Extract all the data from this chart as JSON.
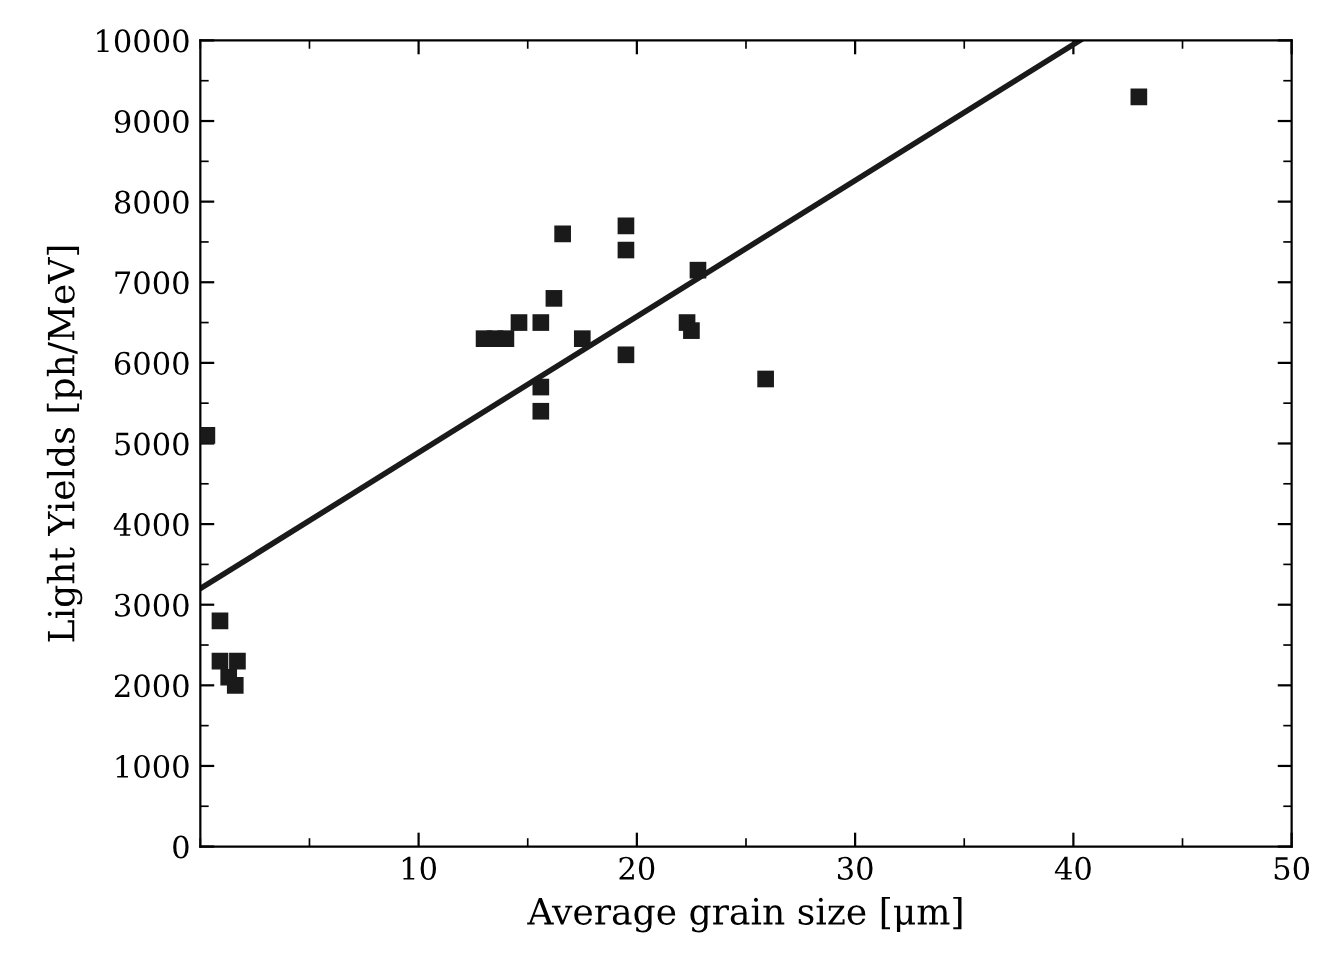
{
  "chart_data": {
    "type": "scatter",
    "xlabel": "Average grain size [μm]",
    "ylabel": "Light Yields [ph/MeV]",
    "xlim": [
      0,
      50
    ],
    "ylim": [
      0,
      10000
    ],
    "xticks": [
      10,
      20,
      30,
      40,
      50
    ],
    "yticks": [
      0,
      1000,
      2000,
      3000,
      4000,
      5000,
      6000,
      7000,
      8000,
      9000,
      10000
    ],
    "grid": false,
    "series": [
      {
        "marker": "square",
        "color": "#1a1a1a",
        "x": [
          0.3,
          0.9,
          0.9,
          1.3,
          1.7,
          1.6,
          13,
          13.5,
          14,
          14.6,
          15.6,
          15.6,
          15.6,
          16.2,
          16.6,
          17.5,
          19.5,
          19.5,
          19.5,
          22.3,
          22.5,
          22.8,
          25.9,
          43
        ],
        "values": [
          5100,
          2800,
          2300,
          2100,
          2300,
          2000,
          6300,
          6300,
          6300,
          6500,
          6500,
          5700,
          5400,
          6800,
          7600,
          6300,
          7700,
          7400,
          6100,
          6500,
          6400,
          7150,
          5800,
          9300
        ]
      },
      {
        "type": "line",
        "marker": "none",
        "line_style": "solid",
        "color": "#1a1a1a",
        "x": [
          0,
          40.3
        ],
        "values": [
          3200,
          10000
        ]
      }
    ]
  }
}
